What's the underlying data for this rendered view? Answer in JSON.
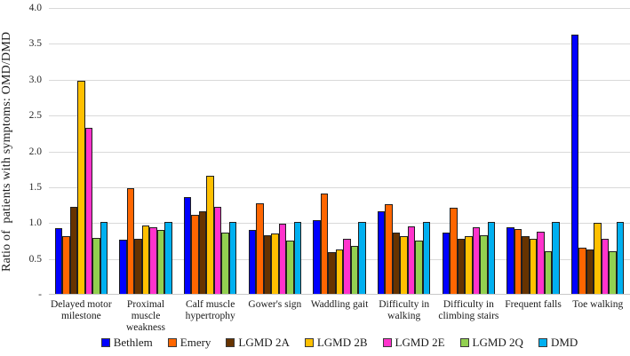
{
  "chart_data": {
    "type": "bar",
    "title": "",
    "ylabel": "Ratio of  patients with symptoms: OMD/DMD",
    "xlabel": "",
    "ylim": [
      0,
      4.0
    ],
    "grid": "horizontal",
    "gridline_color": "#d9d9d9",
    "legend_position": "bottom",
    "yticks": [
      {
        "label": "4.0",
        "value": 4.0
      },
      {
        "label": "3.5",
        "value": 3.5
      },
      {
        "label": "3.0",
        "value": 3.0
      },
      {
        "label": "2.5",
        "value": 2.5
      },
      {
        "label": "2.0",
        "value": 2.0
      },
      {
        "label": "1.5",
        "value": 1.5
      },
      {
        "label": "1.0",
        "value": 1.0
      },
      {
        "label": "0.5",
        "value": 0.5
      },
      {
        "label": "-",
        "value": 0.0
      }
    ],
    "categories": [
      "Delayed motor\nmilestone",
      "Proximal\nmuscle\nweakness",
      "Calf muscle\nhypertrophy",
      "Gower's sign",
      "Waddling gait",
      "Difficulty in\nwalking",
      "Difficulty in\nclimbing stairs",
      "Frequent falls",
      "Toe walking"
    ],
    "series": [
      {
        "name": "Bethlem",
        "color": "#0000ff",
        "values": [
          0.92,
          0.76,
          1.35,
          0.89,
          1.03,
          1.15,
          0.86,
          0.93,
          3.62
        ]
      },
      {
        "name": "Emery",
        "color": "#ff6600",
        "values": [
          0.8,
          1.48,
          1.1,
          1.26,
          1.4,
          1.25,
          1.2,
          0.9,
          0.65
        ]
      },
      {
        "name": "LGMD 2A",
        "color": "#663300",
        "values": [
          1.21,
          0.77,
          1.15,
          0.82,
          0.58,
          0.86,
          0.77,
          0.81,
          0.62
        ]
      },
      {
        "name": "LGMD 2B",
        "color": "#ffc000",
        "values": [
          2.97,
          0.95,
          1.65,
          0.84,
          0.62,
          0.8,
          0.8,
          0.77,
          0.99
        ]
      },
      {
        "name": "LGMD 2E",
        "color": "#ff33cc",
        "values": [
          2.32,
          0.93,
          1.21,
          0.98,
          0.77,
          0.94,
          0.93,
          0.87,
          0.77
        ]
      },
      {
        "name": "LGMD 2Q",
        "color": "#92d050",
        "values": [
          0.78,
          0.89,
          0.86,
          0.74,
          0.67,
          0.74,
          0.82,
          0.6,
          0.59
        ]
      },
      {
        "name": "DMD",
        "color": "#00b0f0",
        "values": [
          1.0,
          1.0,
          1.0,
          1.0,
          1.0,
          1.0,
          1.0,
          1.0,
          1.0
        ]
      }
    ]
  }
}
